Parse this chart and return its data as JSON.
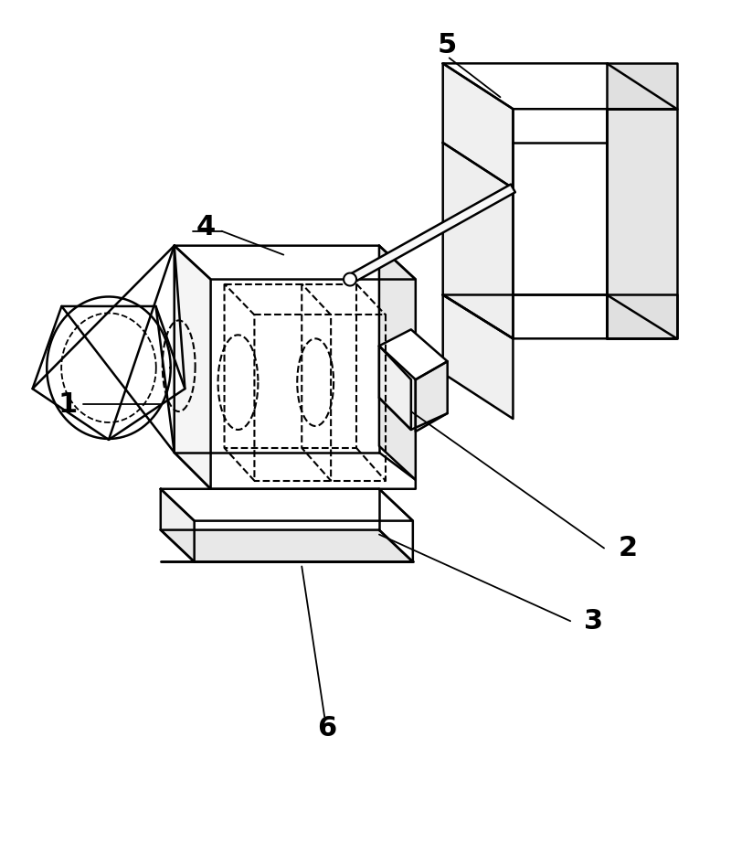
{
  "background_color": "#ffffff",
  "line_color": "#000000",
  "lw": 1.8,
  "lw_thin": 1.3,
  "lw_dash": 1.5,
  "label_fontsize": 22,
  "figsize": [
    8.0,
    9.22
  ]
}
